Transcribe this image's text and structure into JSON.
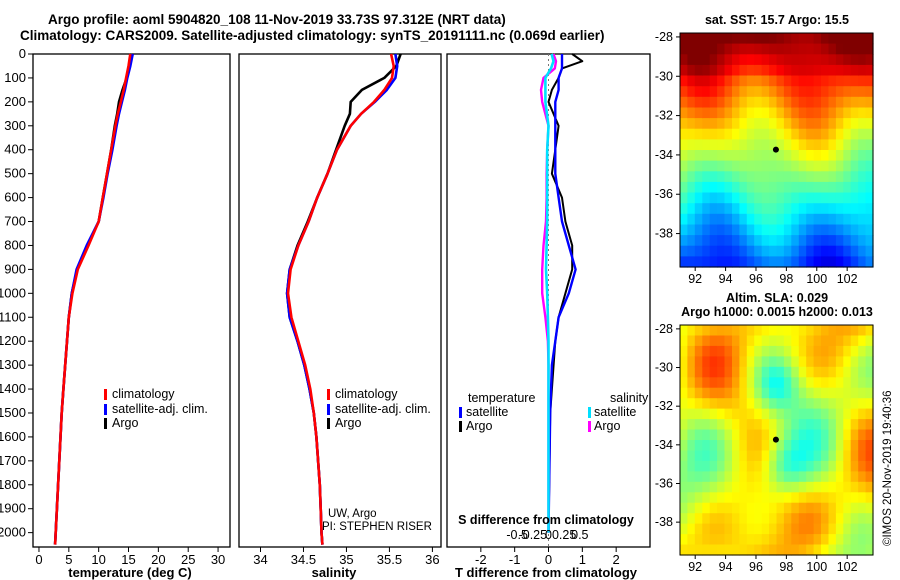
{
  "header": {
    "line1": "Argo profile: aoml 5904820_108 11-Nov-2019 33.73S 97.312E (NRT data)",
    "line2": "Climatology: CARS2009. Satellite-adjusted climatology: synTS_20191111.nc (0.069d earlier)"
  },
  "colors": {
    "climatology": "#ff0000",
    "satellite": "#0000ff",
    "argo": "#000000",
    "sal_satellite": "#00e0ff",
    "sal_argo": "#ff00ff"
  },
  "chart_data": [
    {
      "id": "temperature",
      "type": "line",
      "xlabel": "temperature (deg C)",
      "ylabel": "",
      "xlim": [
        -1,
        32
      ],
      "ylim": [
        2060,
        0
      ],
      "xticks": [
        0,
        5,
        10,
        15,
        20,
        25,
        30
      ],
      "yticks": [
        0,
        100,
        200,
        300,
        400,
        500,
        600,
        700,
        800,
        900,
        1000,
        1100,
        1200,
        1300,
        1400,
        1500,
        1600,
        1700,
        1800,
        1900,
        2000
      ],
      "legend": {
        "position": "lower-right",
        "entries": [
          "climatology",
          "satellite-adj. clim.",
          "Argo"
        ]
      },
      "depth": [
        0,
        50,
        100,
        150,
        200,
        250,
        300,
        400,
        500,
        600,
        700,
        800,
        900,
        1000,
        1100,
        1200,
        1300,
        1400,
        1500,
        1600,
        1700,
        1800,
        1900,
        2000,
        2050
      ],
      "series": [
        {
          "name": "climatology",
          "color": "#ff0000",
          "values": [
            15.3,
            15.0,
            14.6,
            14.2,
            13.7,
            13.2,
            12.8,
            12.1,
            11.4,
            10.7,
            10.0,
            8.3,
            6.5,
            5.6,
            5.0,
            4.7,
            4.4,
            4.1,
            3.8,
            3.6,
            3.4,
            3.2,
            3.0,
            2.8,
            2.7
          ]
        },
        {
          "name": "satellite-adj. clim.",
          "color": "#0000ff",
          "values": [
            15.7,
            15.3,
            14.8,
            14.4,
            13.9,
            13.4,
            13.0,
            12.3,
            11.5,
            10.8,
            10.0,
            8.0,
            6.3,
            5.5,
            5.0,
            4.7,
            4.4,
            4.1,
            3.8,
            3.6,
            3.4,
            3.2,
            3.0,
            2.8,
            2.7
          ]
        },
        {
          "name": "Argo",
          "color": "#000000",
          "values": [
            15.6,
            15.1,
            14.7,
            14.0,
            13.4,
            13.1,
            12.7,
            12.1,
            11.4,
            10.7,
            10.0,
            8.1,
            6.4,
            5.5,
            5.0,
            4.7,
            4.4,
            4.1,
            3.8,
            3.6,
            3.4,
            3.2,
            3.0,
            2.8,
            2.7
          ]
        }
      ]
    },
    {
      "id": "salinity",
      "type": "line",
      "xlabel": "salinity",
      "ylabel": "",
      "xlim": [
        33.75,
        36.1
      ],
      "ylim": [
        2060,
        0
      ],
      "xticks": [
        34,
        34.5,
        35,
        35.5,
        36
      ],
      "legend": {
        "position": "lower-right",
        "entries": [
          "climatology",
          "satellite-adj. clim.",
          "Argo"
        ]
      },
      "annotation1": "UW, Argo",
      "annotation2": "PI: STEPHEN RISER",
      "depth": [
        0,
        50,
        100,
        150,
        200,
        250,
        300,
        400,
        500,
        600,
        700,
        800,
        900,
        1000,
        1100,
        1200,
        1300,
        1400,
        1500,
        1600,
        1700,
        1800,
        1900,
        2000,
        2050
      ],
      "series": [
        {
          "name": "climatology",
          "color": "#ff0000",
          "values": [
            35.52,
            35.55,
            35.53,
            35.44,
            35.32,
            35.17,
            35.05,
            34.89,
            34.78,
            34.66,
            34.56,
            34.44,
            34.35,
            34.32,
            34.36,
            34.44,
            34.52,
            34.58,
            34.62,
            34.65,
            34.67,
            34.69,
            34.7,
            34.71,
            34.72
          ]
        },
        {
          "name": "satellite-adj. clim.",
          "color": "#0000ff",
          "values": [
            35.57,
            35.59,
            35.57,
            35.47,
            35.33,
            35.17,
            35.05,
            34.89,
            34.78,
            34.66,
            34.56,
            34.44,
            34.34,
            34.31,
            34.34,
            34.43,
            34.51,
            34.57,
            34.62,
            34.65,
            34.67,
            34.69,
            34.7,
            34.71,
            34.72
          ]
        },
        {
          "name": "Argo",
          "color": "#000000",
          "values": [
            35.63,
            35.58,
            35.44,
            35.18,
            35.05,
            35.04,
            34.98,
            34.88,
            34.78,
            34.66,
            34.55,
            34.43,
            34.34,
            34.31,
            34.34,
            34.43,
            34.51,
            34.57,
            34.62,
            34.65,
            34.67,
            34.69,
            34.7,
            34.71,
            34.72
          ]
        }
      ]
    },
    {
      "id": "difference",
      "type": "line",
      "xlabel": "T difference from climatology",
      "xlabel_top": "S difference from climatology",
      "xlim": [
        -3,
        3
      ],
      "ylim": [
        2060,
        0
      ],
      "xticks": [
        -2,
        -1,
        0,
        1,
        2
      ],
      "xticks_salinity": [
        -0.5,
        -0.25,
        0,
        0.25,
        0.5
      ],
      "xticks_salinity_labels": [
        "-0.5",
        "-0.25",
        "0",
        "0.25",
        "0.5"
      ],
      "legend_temperature": {
        "title": "temperature",
        "entries": [
          "satellite",
          "Argo"
        ]
      },
      "legend_salinity": {
        "title": "salinity",
        "entries": [
          "satellite",
          "Argo"
        ]
      },
      "depth": [
        0,
        30,
        60,
        100,
        150,
        200,
        300,
        400,
        500,
        600,
        700,
        800,
        900,
        1000,
        1100,
        1200,
        1300,
        1500,
        2000
      ],
      "series": [
        {
          "name": "temperature satellite",
          "color": "#0000ff",
          "values": [
            0.4,
            0.4,
            0.4,
            0.3,
            0.3,
            0.2,
            0.2,
            0.2,
            0.2,
            0.3,
            0.4,
            0.6,
            0.8,
            0.6,
            0.3,
            0.2,
            0.1,
            0.05,
            0.0
          ]
        },
        {
          "name": "temperature Argo",
          "color": "#000000",
          "values": [
            0.7,
            1.0,
            0.4,
            0.3,
            0.1,
            0.0,
            0.3,
            0.2,
            0.1,
            0.4,
            0.5,
            0.7,
            0.7,
            0.5,
            0.3,
            0.2,
            0.15,
            0.05,
            0.0
          ]
        },
        {
          "name": "salinity satellite",
          "color": "#00e0ff",
          "values": [
            0.05,
            0.08,
            0.04,
            -0.05,
            -0.05,
            -0.05,
            0.0,
            -0.02,
            -0.02,
            -0.02,
            -0.02,
            -0.03,
            -0.04,
            -0.02,
            -0.01,
            0.0,
            0.0,
            0.0,
            0.0
          ]
        },
        {
          "name": "salinity Argo",
          "color": "#ff00ff",
          "values": [
            0.08,
            0.12,
            0.1,
            -0.08,
            -0.12,
            -0.1,
            0.0,
            -0.02,
            -0.03,
            -0.03,
            -0.04,
            -0.08,
            -0.1,
            -0.1,
            -0.05,
            -0.01,
            0.0,
            0.0,
            0.0
          ]
        }
      ]
    },
    {
      "id": "sst_map",
      "type": "heatmap",
      "title": "sat. SST: 15.7 Argo: 15.5",
      "xlim": [
        91,
        103.7
      ],
      "ylim": [
        -39.7,
        -27.8
      ],
      "xticks": [
        92,
        94,
        96,
        98,
        100,
        102
      ],
      "yticks": [
        -28,
        -30,
        -32,
        -34,
        -36,
        -38
      ]
    },
    {
      "id": "sla_map",
      "type": "heatmap",
      "title": "Altim. SLA: 0.029",
      "subtitle": "Argo h1000: 0.0015 h2000: 0.013",
      "xlim": [
        91,
        103.7
      ],
      "ylim": [
        -39.7,
        -27.8
      ],
      "xticks": [
        92,
        94,
        96,
        98,
        100,
        102
      ],
      "yticks": [
        -28,
        -30,
        -32,
        -34,
        -36,
        -38
      ]
    }
  ],
  "footer": {
    "stamp": "©IMOS 20-Nov-2019 19:40:36"
  }
}
